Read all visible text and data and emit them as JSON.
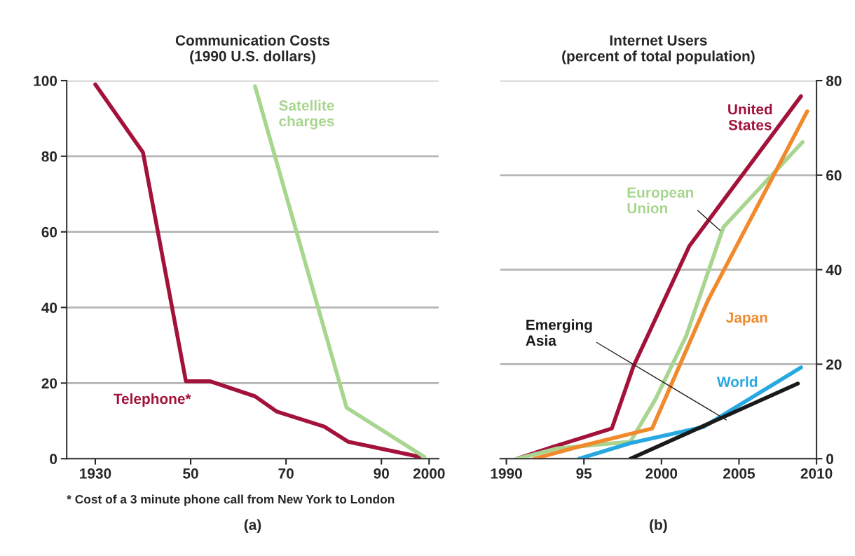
{
  "chart_data": [
    {
      "type": "line",
      "title": "Communication Costs\n(1990 U.S. dollars)",
      "xlim": [
        1924,
        2002
      ],
      "xticks": [
        1930,
        {
          "value": 1950,
          "label": "50"
        },
        {
          "value": 1970,
          "label": "70"
        },
        {
          "value": 1990,
          "label": "90"
        },
        2000
      ],
      "ylim": [
        0,
        100
      ],
      "yticks": [
        0,
        20,
        40,
        60,
        80,
        100
      ],
      "grid": "y",
      "legend": false,
      "series": [
        {
          "name": "Telephone*",
          "color": "#a3123a",
          "x": [
            1930,
            1940,
            1949,
            1954,
            1963.5,
            1968,
            1978,
            1983,
            1998
          ],
          "values": [
            99,
            81,
            20.5,
            20.5,
            16.5,
            12.5,
            8.5,
            4.5,
            0.5
          ]
        },
        {
          "name": "Satellite\ncharges",
          "color": "#a8d58f",
          "x": [
            1963.5,
            1982.7,
            1999
          ],
          "values": [
            98.5,
            13.5,
            0.5
          ]
        }
      ],
      "annotations": [
        "* Cost of a 3 minute phone call from New York to London",
        "(a)"
      ]
    },
    {
      "type": "line",
      "title": "Internet Users\n(percent of total population)",
      "xlim": [
        1989.6,
        2010
      ],
      "xticks": [
        1990,
        {
          "value": 1995,
          "label": "95"
        },
        2000,
        2005,
        2010
      ],
      "ylim": [
        0,
        80
      ],
      "yticks": [
        0,
        20,
        40,
        60,
        80
      ],
      "grid": "y",
      "legend": false,
      "series": [
        {
          "name": "United\nStates",
          "color": "#a3123a",
          "x": [
            1990.7,
            1993,
            1996.8,
            1998.2,
            2001.8,
            2009
          ],
          "values": [
            0,
            2.5,
            6.4,
            19.6,
            45,
            76.7
          ]
        },
        {
          "name": "European\nUnion",
          "color": "#a8d58f",
          "x": [
            1990.7,
            1993.3,
            1998,
            1999.6,
            2001.6,
            2004,
            2009.1
          ],
          "values": [
            0,
            2.2,
            3.6,
            12.5,
            26,
            49,
            67
          ]
        },
        {
          "name": "Japan",
          "color": "#f08a2c",
          "x": [
            1991.8,
            1994.5,
            1999.4,
            2003,
            2009.4
          ],
          "values": [
            0,
            2.4,
            6.4,
            33.5,
            73.5
          ]
        },
        {
          "name": "World",
          "color": "#27a8e0",
          "x": [
            1994.7,
            1998,
            2002.7,
            2009
          ],
          "values": [
            0,
            3.3,
            6.7,
            19.3
          ]
        },
        {
          "name": "Emerging\nAsia",
          "color": "#1a1a1a",
          "x": [
            1998,
            2008.8
          ],
          "values": [
            0,
            15.9
          ]
        }
      ],
      "annotations": [
        "(b)"
      ]
    }
  ]
}
